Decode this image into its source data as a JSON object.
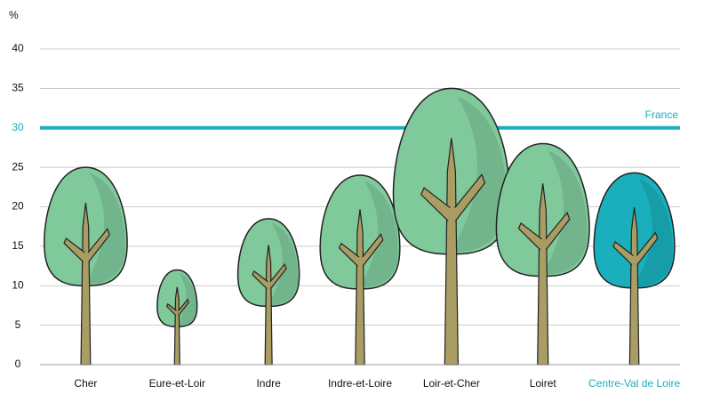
{
  "chart_data": {
    "type": "tree-pictogram",
    "y_label": "%",
    "categories": [
      "Cher",
      "Eure-et-Loir",
      "Indre",
      "Indre-et-Loire",
      "Loir-et-Cher",
      "Loiret",
      "Centre-Val de Loire"
    ],
    "values": [
      25,
      12,
      18.5,
      24,
      35,
      28,
      24.3
    ],
    "colors": [
      "#7fc99b",
      "#7fc99b",
      "#7fc99b",
      "#7fc99b",
      "#7fc99b",
      "#7fc99b",
      "#1aafbc"
    ],
    "highlight_color": "#1aafbc",
    "trunk_color": "#a99d63",
    "reference": {
      "label": "France",
      "value": 30,
      "color": "#1aafbc"
    },
    "ylim": [
      0,
      40
    ],
    "yticks": [
      0,
      5,
      10,
      15,
      20,
      25,
      30,
      35,
      40
    ],
    "grid": true
  }
}
